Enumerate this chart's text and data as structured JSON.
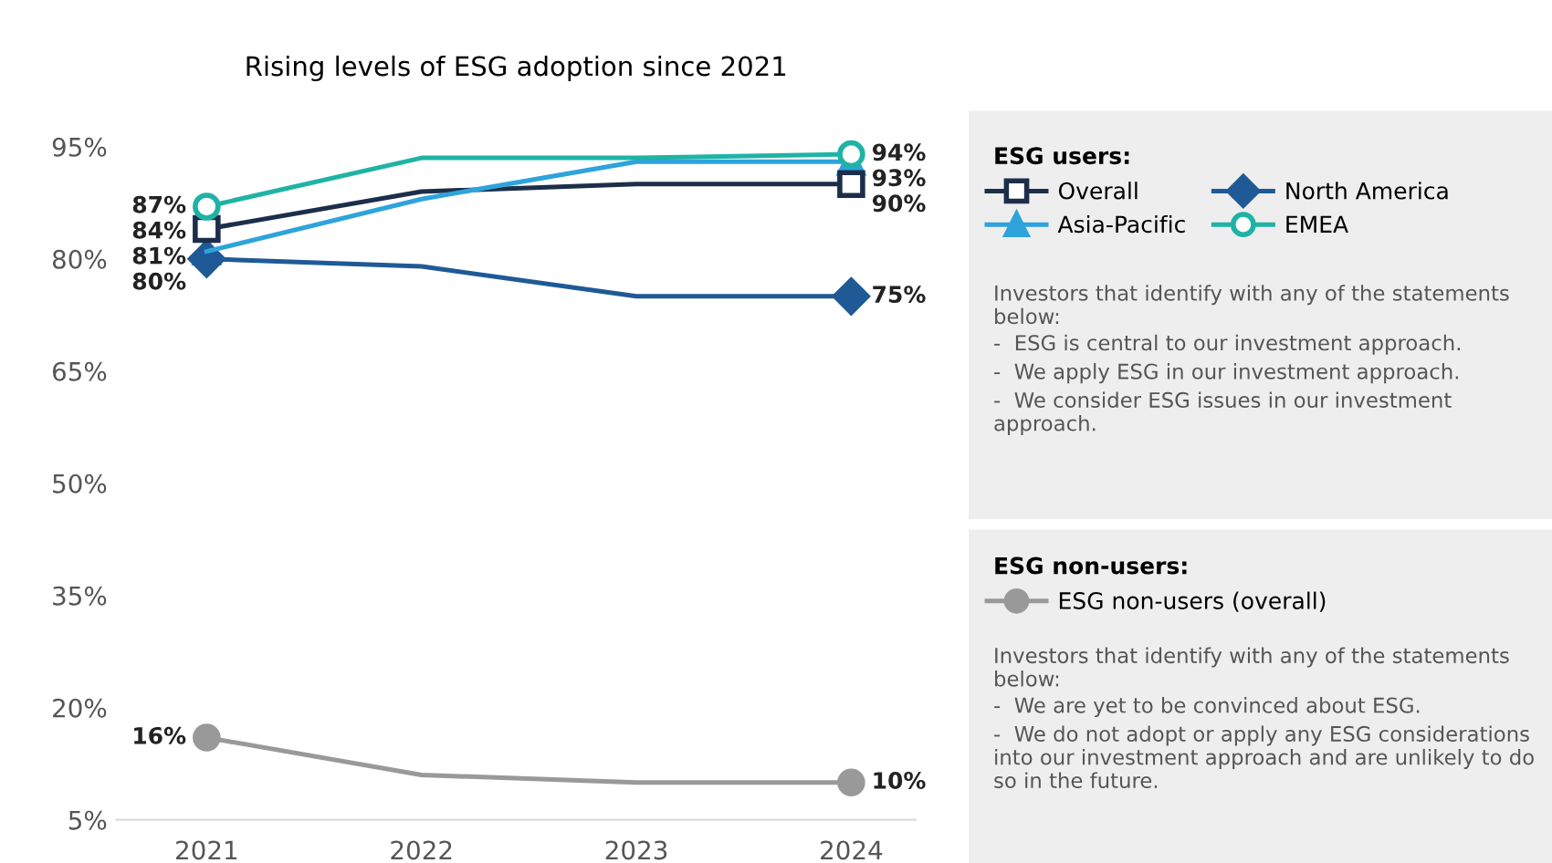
{
  "chart_data": {
    "type": "line",
    "title": "Rising levels of ESG adoption since 2021",
    "categories": [
      "2021",
      "2022",
      "2023",
      "2024"
    ],
    "series": [
      {
        "name": "Overall",
        "color": "#1c2e4a",
        "marker": "square",
        "values": [
          84,
          89,
          90,
          90
        ],
        "value_labels": [
          "84%",
          null,
          null,
          "90%"
        ]
      },
      {
        "name": "Asia-Pacific",
        "color": "#2ea3dc",
        "marker": "triangle",
        "values": [
          81,
          88,
          93,
          93
        ],
        "value_labels": [
          "81%",
          null,
          null,
          "93%"
        ]
      },
      {
        "name": "North America",
        "color": "#1f5a96",
        "marker": "diamond",
        "values": [
          80,
          79,
          75,
          75
        ],
        "value_labels": [
          "80%",
          null,
          null,
          "75%"
        ]
      },
      {
        "name": "EMEA",
        "color": "#1fb3a5",
        "marker": "circle",
        "values": [
          87,
          93.5,
          93.5,
          94
        ],
        "value_labels": [
          "87%",
          null,
          null,
          "94%"
        ]
      },
      {
        "name": "ESG non-users (overall)",
        "color": "#999999",
        "marker": "circle",
        "values": [
          16,
          11,
          10,
          10
        ],
        "value_labels": [
          "16%",
          null,
          null,
          "10%"
        ]
      }
    ],
    "ylim": [
      5,
      95
    ],
    "yticks": [
      {
        "value": 5,
        "label": "5%"
      },
      {
        "value": 20,
        "label": "20%"
      },
      {
        "value": 35,
        "label": "35%"
      },
      {
        "value": 50,
        "label": "50%"
      },
      {
        "value": 65,
        "label": "65%"
      },
      {
        "value": 80,
        "label": "80%"
      },
      {
        "value": 95,
        "label": "95%"
      }
    ],
    "grid": false,
    "legend": "right",
    "annotations": [
      "ESG users:",
      "Investors that identify with any of the statements below:",
      "-  ESG is central to our investment approach.",
      "-  We apply ESG in our investment approach.",
      "-  We consider ESG issues in our investment approach.",
      "ESG non-users:",
      "Investors that identify with any of the statements below:",
      "-  We are yet to be convinced about ESG.",
      "-  We do not adopt or apply any ESG considerations into our investment approach and are unlikely to do so in the future."
    ]
  }
}
